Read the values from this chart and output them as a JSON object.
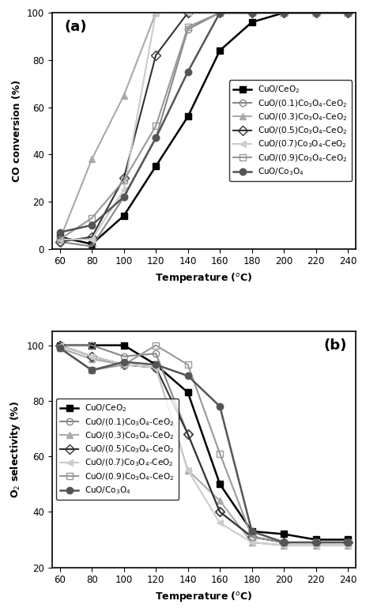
{
  "temp": [
    60,
    80,
    100,
    120,
    140,
    160,
    180,
    200,
    220,
    240
  ],
  "co_conversion": {
    "CuO/CeO2": [
      5,
      2,
      14,
      35,
      56,
      84,
      96,
      100,
      100,
      100
    ],
    "CuO/(0.1)Co3O4-CeO2": [
      3,
      1,
      22,
      47,
      93,
      100,
      100,
      100,
      100,
      100
    ],
    "CuO/(0.3)Co3O4-CeO2": [
      4,
      38,
      65,
      100,
      100,
      100,
      100,
      100,
      100,
      100
    ],
    "CuO/(0.5)Co3O4-CeO2": [
      3,
      5,
      30,
      82,
      100,
      100,
      100,
      100,
      100,
      100
    ],
    "CuO/(0.7)Co3O4-CeO2": [
      4,
      4,
      25,
      100,
      100,
      100,
      100,
      100,
      100,
      100
    ],
    "CuO/(0.9)Co3O4-CeO2": [
      4,
      13,
      29,
      52,
      94,
      100,
      100,
      100,
      100,
      100
    ],
    "CuO/Co3O4": [
      7,
      10,
      22,
      47,
      75,
      100,
      100,
      100,
      100,
      100
    ]
  },
  "o2_selectivity": {
    "CuO/CeO2": [
      100,
      100,
      100,
      93,
      83,
      50,
      33,
      32,
      30,
      30
    ],
    "CuO/(0.1)Co3O4-CeO2": [
      100,
      100,
      96,
      97,
      68,
      40,
      31,
      29,
      29,
      29
    ],
    "CuO/(0.3)Co3O4-CeO2": [
      99,
      95,
      93,
      92,
      55,
      44,
      29,
      28,
      28,
      28
    ],
    "CuO/(0.5)Co3O4-CeO2": [
      100,
      96,
      93,
      92,
      68,
      40,
      31,
      29,
      29,
      29
    ],
    "CuO/(0.7)Co3O4-CeO2": [
      100,
      96,
      93,
      92,
      55,
      36,
      29,
      28,
      28,
      28
    ],
    "CuO/(0.9)Co3O4-CeO2": [
      99,
      91,
      93,
      100,
      93,
      61,
      31,
      29,
      29,
      29
    ],
    "CuO/Co3O4": [
      99,
      91,
      94,
      93,
      89,
      78,
      33,
      29,
      29,
      29
    ]
  },
  "series_styles": {
    "CuO/CeO2": {
      "color": "#000000",
      "marker": "s",
      "fillstyle": "full",
      "lw": 1.8,
      "ms": 6
    },
    "CuO/(0.1)Co3O4-CeO2": {
      "color": "#888888",
      "marker": "o",
      "fillstyle": "none",
      "lw": 1.5,
      "ms": 6
    },
    "CuO/(0.3)Co3O4-CeO2": {
      "color": "#aaaaaa",
      "marker": "^",
      "fillstyle": "full",
      "lw": 1.5,
      "ms": 6
    },
    "CuO/(0.5)Co3O4-CeO2": {
      "color": "#333333",
      "marker": "D",
      "fillstyle": "none",
      "lw": 1.5,
      "ms": 6
    },
    "CuO/(0.7)Co3O4-CeO2": {
      "color": "#cccccc",
      "marker": "<",
      "fillstyle": "full",
      "lw": 1.5,
      "ms": 6
    },
    "CuO/(0.9)Co3O4-CeO2": {
      "color": "#999999",
      "marker": "s",
      "fillstyle": "none",
      "lw": 1.5,
      "ms": 6
    },
    "CuO/Co3O4": {
      "color": "#555555",
      "marker": "o",
      "fillstyle": "full",
      "lw": 1.8,
      "ms": 6
    }
  },
  "legend_labels": {
    "CuO/CeO2": "CuO/CeO$_2$",
    "CuO/(0.1)Co3O4-CeO2": "CuO/(0.1)Co$_3$O$_4$-CeO$_2$",
    "CuO/(0.3)Co3O4-CeO2": "CuO/(0.3)Co$_3$O$_4$-CeO$_2$",
    "CuO/(0.5)Co3O4-CeO2": "CuO/(0.5)Co$_3$O$_4$-CeO$_2$",
    "CuO/(0.7)Co3O4-CeO2": "CuO/(0.7)Co$_3$O$_4$-CeO$_2$",
    "CuO/(0.9)Co3O4-CeO2": "CuO/(0.9)Co$_3$O$_4$-CeO$_2$",
    "CuO/Co3O4": "CuO/Co$_3$O$_4$"
  },
  "panel_a": {
    "ylabel": "CO conversion (%)",
    "xlabel": "Temperature ($^o$C)",
    "ylim": [
      0,
      100
    ],
    "xlim": [
      55,
      245
    ],
    "xticks": [
      60,
      80,
      100,
      120,
      140,
      160,
      180,
      200,
      220,
      240
    ],
    "yticks": [
      0,
      20,
      40,
      60,
      80,
      100
    ],
    "label_text": "(a)",
    "legend_loc": "center right"
  },
  "panel_b": {
    "ylabel": "O$_2$ selectivity (%)",
    "xlabel": "Temperature ($^o$C)",
    "ylim": [
      20,
      105
    ],
    "xlim": [
      55,
      245
    ],
    "xticks": [
      60,
      80,
      100,
      120,
      140,
      160,
      180,
      200,
      220,
      240
    ],
    "yticks": [
      20,
      40,
      60,
      80,
      100
    ],
    "label_text": "(b)",
    "legend_loc": "center left"
  },
  "figsize": [
    4.63,
    7.74
  ],
  "dpi": 100,
  "font_size": 9,
  "legend_fontsize": 7.5,
  "tick_fontsize": 8.5
}
